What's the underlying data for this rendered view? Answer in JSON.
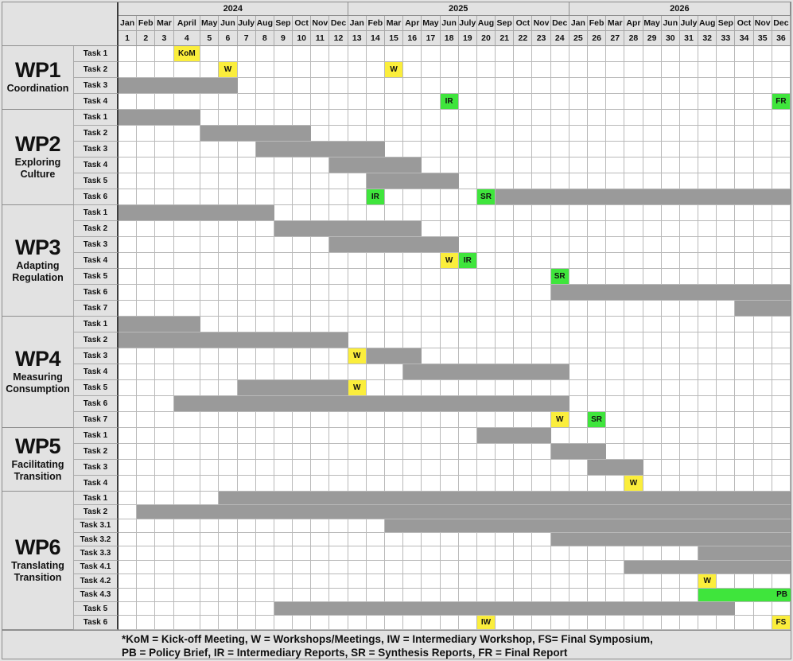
{
  "colors": {
    "bar_gray": "#9A9A9A",
    "milestone_yellow": "#FBEE3C",
    "milestone_green": "#3FE53C",
    "header_bg": "#E2E2E2",
    "grid_line": "#B9B9B9"
  },
  "chart_data": {
    "type": "gantt",
    "title": "Project work plan Gantt chart, 36 months (2024-2026)",
    "years": [
      {
        "label": "2024",
        "months": [
          "Jan",
          "Feb",
          "Mar",
          "April",
          "May",
          "Jun",
          "July",
          "Aug",
          "Sep",
          "Oct",
          "Nov",
          "Dec"
        ]
      },
      {
        "label": "2025",
        "months": [
          "Jan",
          "Feb",
          "Mar",
          "Apr",
          "May",
          "Jun",
          "July",
          "Aug",
          "Sep",
          "Oct",
          "Nov",
          "Dec"
        ]
      },
      {
        "label": "2026",
        "months": [
          "Jan",
          "Feb",
          "Mar",
          "Apr",
          "May",
          "Jun",
          "July",
          "Aug",
          "Sep",
          "Oct",
          "Nov",
          "Dec"
        ]
      }
    ],
    "month_numbers": [
      1,
      2,
      3,
      4,
      5,
      6,
      7,
      8,
      9,
      10,
      11,
      12,
      13,
      14,
      15,
      16,
      17,
      18,
      19,
      20,
      21,
      22,
      23,
      24,
      25,
      26,
      27,
      28,
      29,
      30,
      31,
      32,
      33,
      34,
      35,
      36
    ],
    "work_packages": [
      {
        "code": "WP1",
        "title": "Coordination",
        "tasks": [
          {
            "label": "Task 1",
            "bars": [],
            "milestones": [
              {
                "month": 4,
                "label": "KoM",
                "color": "yellow"
              }
            ]
          },
          {
            "label": "Task 2",
            "bars": [],
            "milestones": [
              {
                "month": 6,
                "label": "W",
                "color": "yellow"
              },
              {
                "month": 15,
                "label": "W",
                "color": "yellow"
              }
            ]
          },
          {
            "label": "Task 3",
            "bars": [
              {
                "start": 1,
                "end": 6
              }
            ],
            "milestones": []
          },
          {
            "label": "Task 4",
            "bars": [],
            "milestones": [
              {
                "month": 18,
                "label": "IR",
                "color": "green"
              },
              {
                "month": 36,
                "label": "FR",
                "color": "green"
              }
            ]
          }
        ]
      },
      {
        "code": "WP2",
        "title": "Exploring Culture",
        "tasks": [
          {
            "label": "Task 1",
            "bars": [
              {
                "start": 1,
                "end": 4
              }
            ],
            "milestones": []
          },
          {
            "label": "Task 2",
            "bars": [
              {
                "start": 5,
                "end": 10
              }
            ],
            "milestones": []
          },
          {
            "label": "Task 3",
            "bars": [
              {
                "start": 8,
                "end": 14
              }
            ],
            "milestones": []
          },
          {
            "label": "Task 4",
            "bars": [
              {
                "start": 12,
                "end": 16
              }
            ],
            "milestones": []
          },
          {
            "label": "Task 5",
            "bars": [
              {
                "start": 14,
                "end": 18
              }
            ],
            "milestones": []
          },
          {
            "label": "Task 6",
            "bars": [
              {
                "start": 21,
                "end": 36
              }
            ],
            "milestones": [
              {
                "month": 14,
                "label": "IR",
                "color": "green"
              },
              {
                "month": 20,
                "label": "SR",
                "color": "green"
              }
            ]
          }
        ]
      },
      {
        "code": "WP3",
        "title": "Adapting Regulation",
        "tasks": [
          {
            "label": "Task 1",
            "bars": [
              {
                "start": 1,
                "end": 8
              }
            ],
            "milestones": []
          },
          {
            "label": "Task 2",
            "bars": [
              {
                "start": 9,
                "end": 16
              }
            ],
            "milestones": []
          },
          {
            "label": "Task 3",
            "bars": [
              {
                "start": 12,
                "end": 18
              }
            ],
            "milestones": []
          },
          {
            "label": "Task 4",
            "bars": [],
            "milestones": [
              {
                "month": 18,
                "label": "W",
                "color": "yellow"
              },
              {
                "month": 19,
                "label": "IR",
                "color": "green"
              }
            ]
          },
          {
            "label": "Task 5",
            "bars": [],
            "milestones": [
              {
                "month": 24,
                "label": "SR",
                "color": "green"
              }
            ]
          },
          {
            "label": "Task 6",
            "bars": [
              {
                "start": 24,
                "end": 36
              }
            ],
            "milestones": []
          },
          {
            "label": "Task 7",
            "bars": [
              {
                "start": 34,
                "end": 36
              }
            ],
            "milestones": []
          }
        ]
      },
      {
        "code": "WP4",
        "title": "Measuring Consumption",
        "tasks": [
          {
            "label": "Task 1",
            "bars": [
              {
                "start": 1,
                "end": 4
              }
            ],
            "milestones": []
          },
          {
            "label": "Task 2",
            "bars": [
              {
                "start": 1,
                "end": 12
              }
            ],
            "milestones": []
          },
          {
            "label": "Task 3",
            "bars": [
              {
                "start": 14,
                "end": 16
              }
            ],
            "milestones": [
              {
                "month": 13,
                "label": "W",
                "color": "yellow"
              }
            ]
          },
          {
            "label": "Task 4",
            "bars": [
              {
                "start": 16,
                "end": 24
              }
            ],
            "milestones": []
          },
          {
            "label": "Task 5",
            "bars": [
              {
                "start": 7,
                "end": 12
              }
            ],
            "milestones": [
              {
                "month": 13,
                "label": "W",
                "color": "yellow"
              }
            ]
          },
          {
            "label": "Task 6",
            "bars": [
              {
                "start": 4,
                "end": 24
              }
            ],
            "milestones": []
          },
          {
            "label": "Task 7",
            "bars": [],
            "milestones": [
              {
                "month": 24,
                "label": "W",
                "color": "yellow"
              },
              {
                "month": 26,
                "label": "SR",
                "color": "green"
              }
            ]
          }
        ]
      },
      {
        "code": "WP5",
        "title": "Facilitating Transition",
        "tasks": [
          {
            "label": "Task 1",
            "bars": [
              {
                "start": 20,
                "end": 23
              }
            ],
            "milestones": []
          },
          {
            "label": "Task 2",
            "bars": [
              {
                "start": 24,
                "end": 26
              }
            ],
            "milestones": []
          },
          {
            "label": "Task 3",
            "bars": [
              {
                "start": 26,
                "end": 28
              }
            ],
            "milestones": []
          },
          {
            "label": "Task 4",
            "bars": [],
            "milestones": [
              {
                "month": 28,
                "label": "W",
                "color": "yellow"
              }
            ]
          }
        ]
      },
      {
        "code": "WP6",
        "title": "Translating Transition",
        "tasks": [
          {
            "label": "Task 1",
            "bars": [
              {
                "start": 6,
                "end": 36
              }
            ],
            "milestones": []
          },
          {
            "label": "Task 2",
            "bars": [
              {
                "start": 2,
                "end": 36
              }
            ],
            "milestones": []
          },
          {
            "label": "Task 3.1",
            "bars": [
              {
                "start": 15,
                "end": 36
              }
            ],
            "milestones": []
          },
          {
            "label": "Task 3.2",
            "bars": [
              {
                "start": 24,
                "end": 36
              }
            ],
            "milestones": []
          },
          {
            "label": "Task 3.3",
            "bars": [
              {
                "start": 32,
                "end": 36
              }
            ],
            "milestones": []
          },
          {
            "label": "Task 4.1",
            "bars": [
              {
                "start": 28,
                "end": 36
              }
            ],
            "milestones": []
          },
          {
            "label": "Task 4.2",
            "bars": [],
            "milestones": [
              {
                "month": 32,
                "label": "W",
                "color": "yellow"
              }
            ]
          },
          {
            "label": "Task 4.3",
            "bars": [
              {
                "start": 32,
                "end": 36,
                "color": "green",
                "label": "PB"
              }
            ],
            "milestones": []
          },
          {
            "label": "Task 5",
            "bars": [
              {
                "start": 9,
                "end": 33
              }
            ],
            "milestones": []
          },
          {
            "label": "Task 6",
            "bars": [],
            "milestones": [
              {
                "month": 20,
                "label": "IW",
                "color": "yellow"
              },
              {
                "month": 36,
                "label": "FS",
                "color": "yellow"
              }
            ]
          }
        ]
      }
    ],
    "footnote_lines": [
      "*KoM = Kick-off Meeting, W = Workshops/Meetings, IW = Intermediary Workshop, FS= Final Symposium,",
      "PB = Policy Brief, IR = Intermediary Reports, SR = Synthesis Reports, FR = Final Report"
    ]
  }
}
